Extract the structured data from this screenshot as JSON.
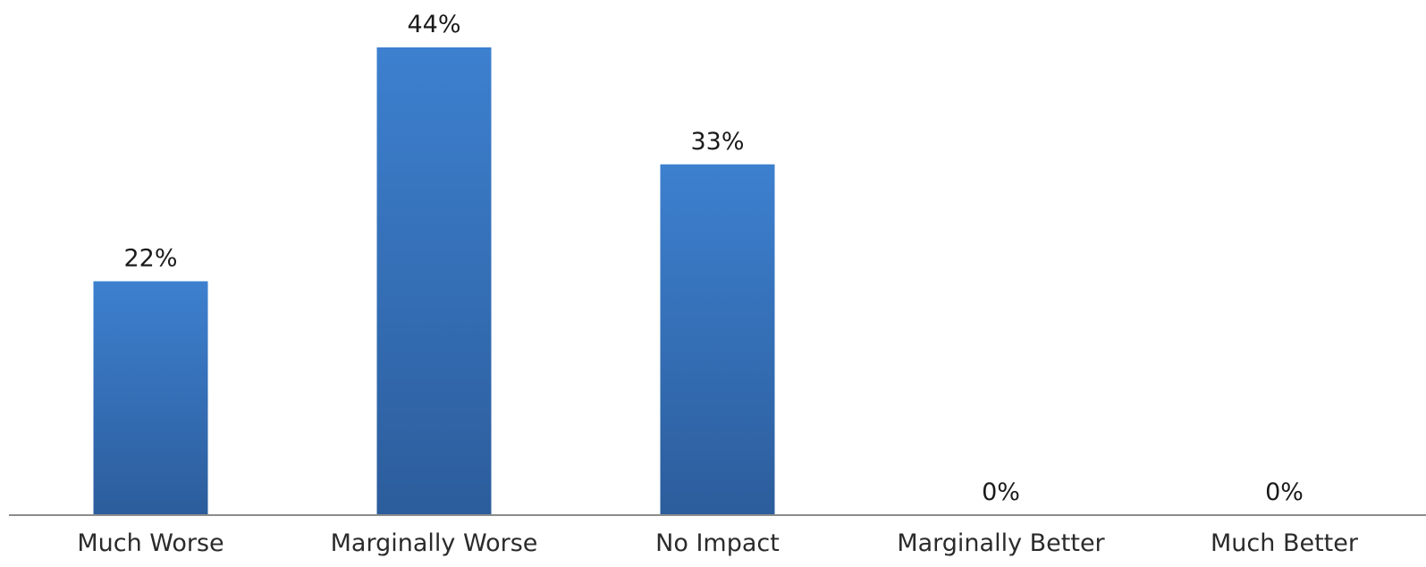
{
  "chart_data": {
    "type": "bar",
    "categories": [
      "Much Worse",
      "Marginally Worse",
      "No Impact",
      "Marginally Better",
      "Much Better"
    ],
    "values": [
      22,
      44,
      33,
      0,
      0
    ],
    "value_labels": [
      "22%",
      "44%",
      "33%",
      "0%",
      "0%"
    ],
    "title": "",
    "xlabel": "",
    "ylabel": "",
    "ylim": [
      0,
      44
    ],
    "grid": false,
    "legend": "none",
    "colors": {
      "bar_top": "#3d80cf",
      "bar_bottom": "#2c5d9c",
      "axis": "#8c8c8c"
    }
  }
}
